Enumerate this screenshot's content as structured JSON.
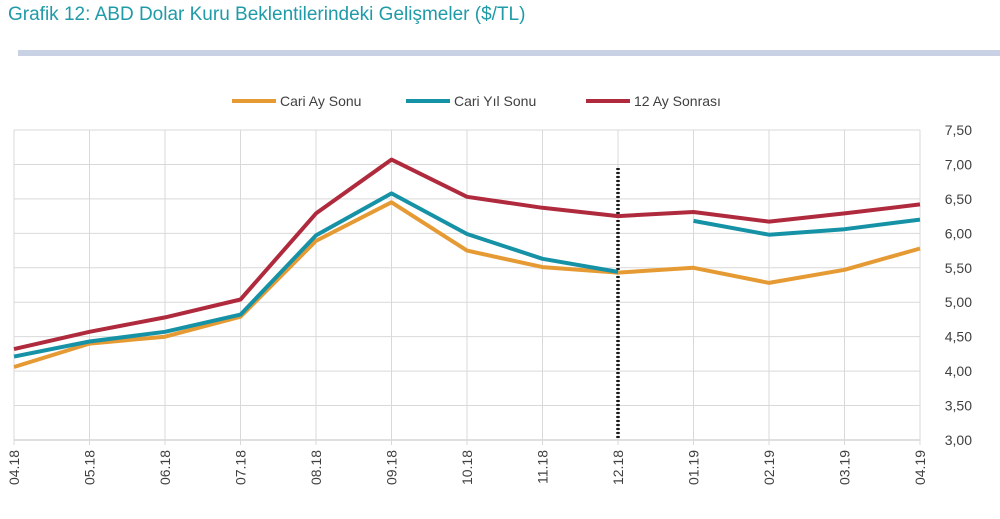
{
  "title": "Grafik 12: ABD Dolar Kuru Beklentilerindeki Gelişmeler  ($/TL)",
  "chart_data": {
    "type": "line",
    "categories": [
      "04.18",
      "05.18",
      "06.18",
      "07.18",
      "08.18",
      "09.18",
      "10.18",
      "11.18",
      "12.18",
      "01.19",
      "02.19",
      "03.19",
      "04.19"
    ],
    "y_ticks": [
      "3,00",
      "3,50",
      "4,00",
      "4,50",
      "5,00",
      "5,50",
      "6,00",
      "6,50",
      "7,00",
      "7,50"
    ],
    "ylim": [
      3.0,
      7.5
    ],
    "y_axis_position": "right",
    "grid": true,
    "legend_position": "top",
    "divider_after_category": "12.18",
    "series": [
      {
        "name": "Cari Ay Sonu",
        "color": "#e59a33",
        "values": [
          4.06,
          4.4,
          4.5,
          4.79,
          5.89,
          6.45,
          5.75,
          5.51,
          5.43,
          5.5,
          5.28,
          5.47,
          5.78
        ]
      },
      {
        "name": "Cari Yıl Sonu",
        "color": "#1692a6",
        "values": [
          4.21,
          4.43,
          4.57,
          4.82,
          5.97,
          6.58,
          5.99,
          5.63,
          5.44,
          null,
          null,
          null,
          null
        ]
      },
      {
        "name": "Cari Yıl Sonu",
        "color": "#1692a6",
        "hide_legend": true,
        "values": [
          null,
          null,
          null,
          null,
          null,
          null,
          null,
          null,
          null,
          6.18,
          5.98,
          6.06,
          6.2
        ]
      },
      {
        "name": "12 Ay Sonrası",
        "color": "#b02a3e",
        "values": [
          4.32,
          4.57,
          4.78,
          5.04,
          6.29,
          7.07,
          6.53,
          6.37,
          6.25,
          6.31,
          6.17,
          6.29,
          6.42
        ]
      }
    ]
  }
}
